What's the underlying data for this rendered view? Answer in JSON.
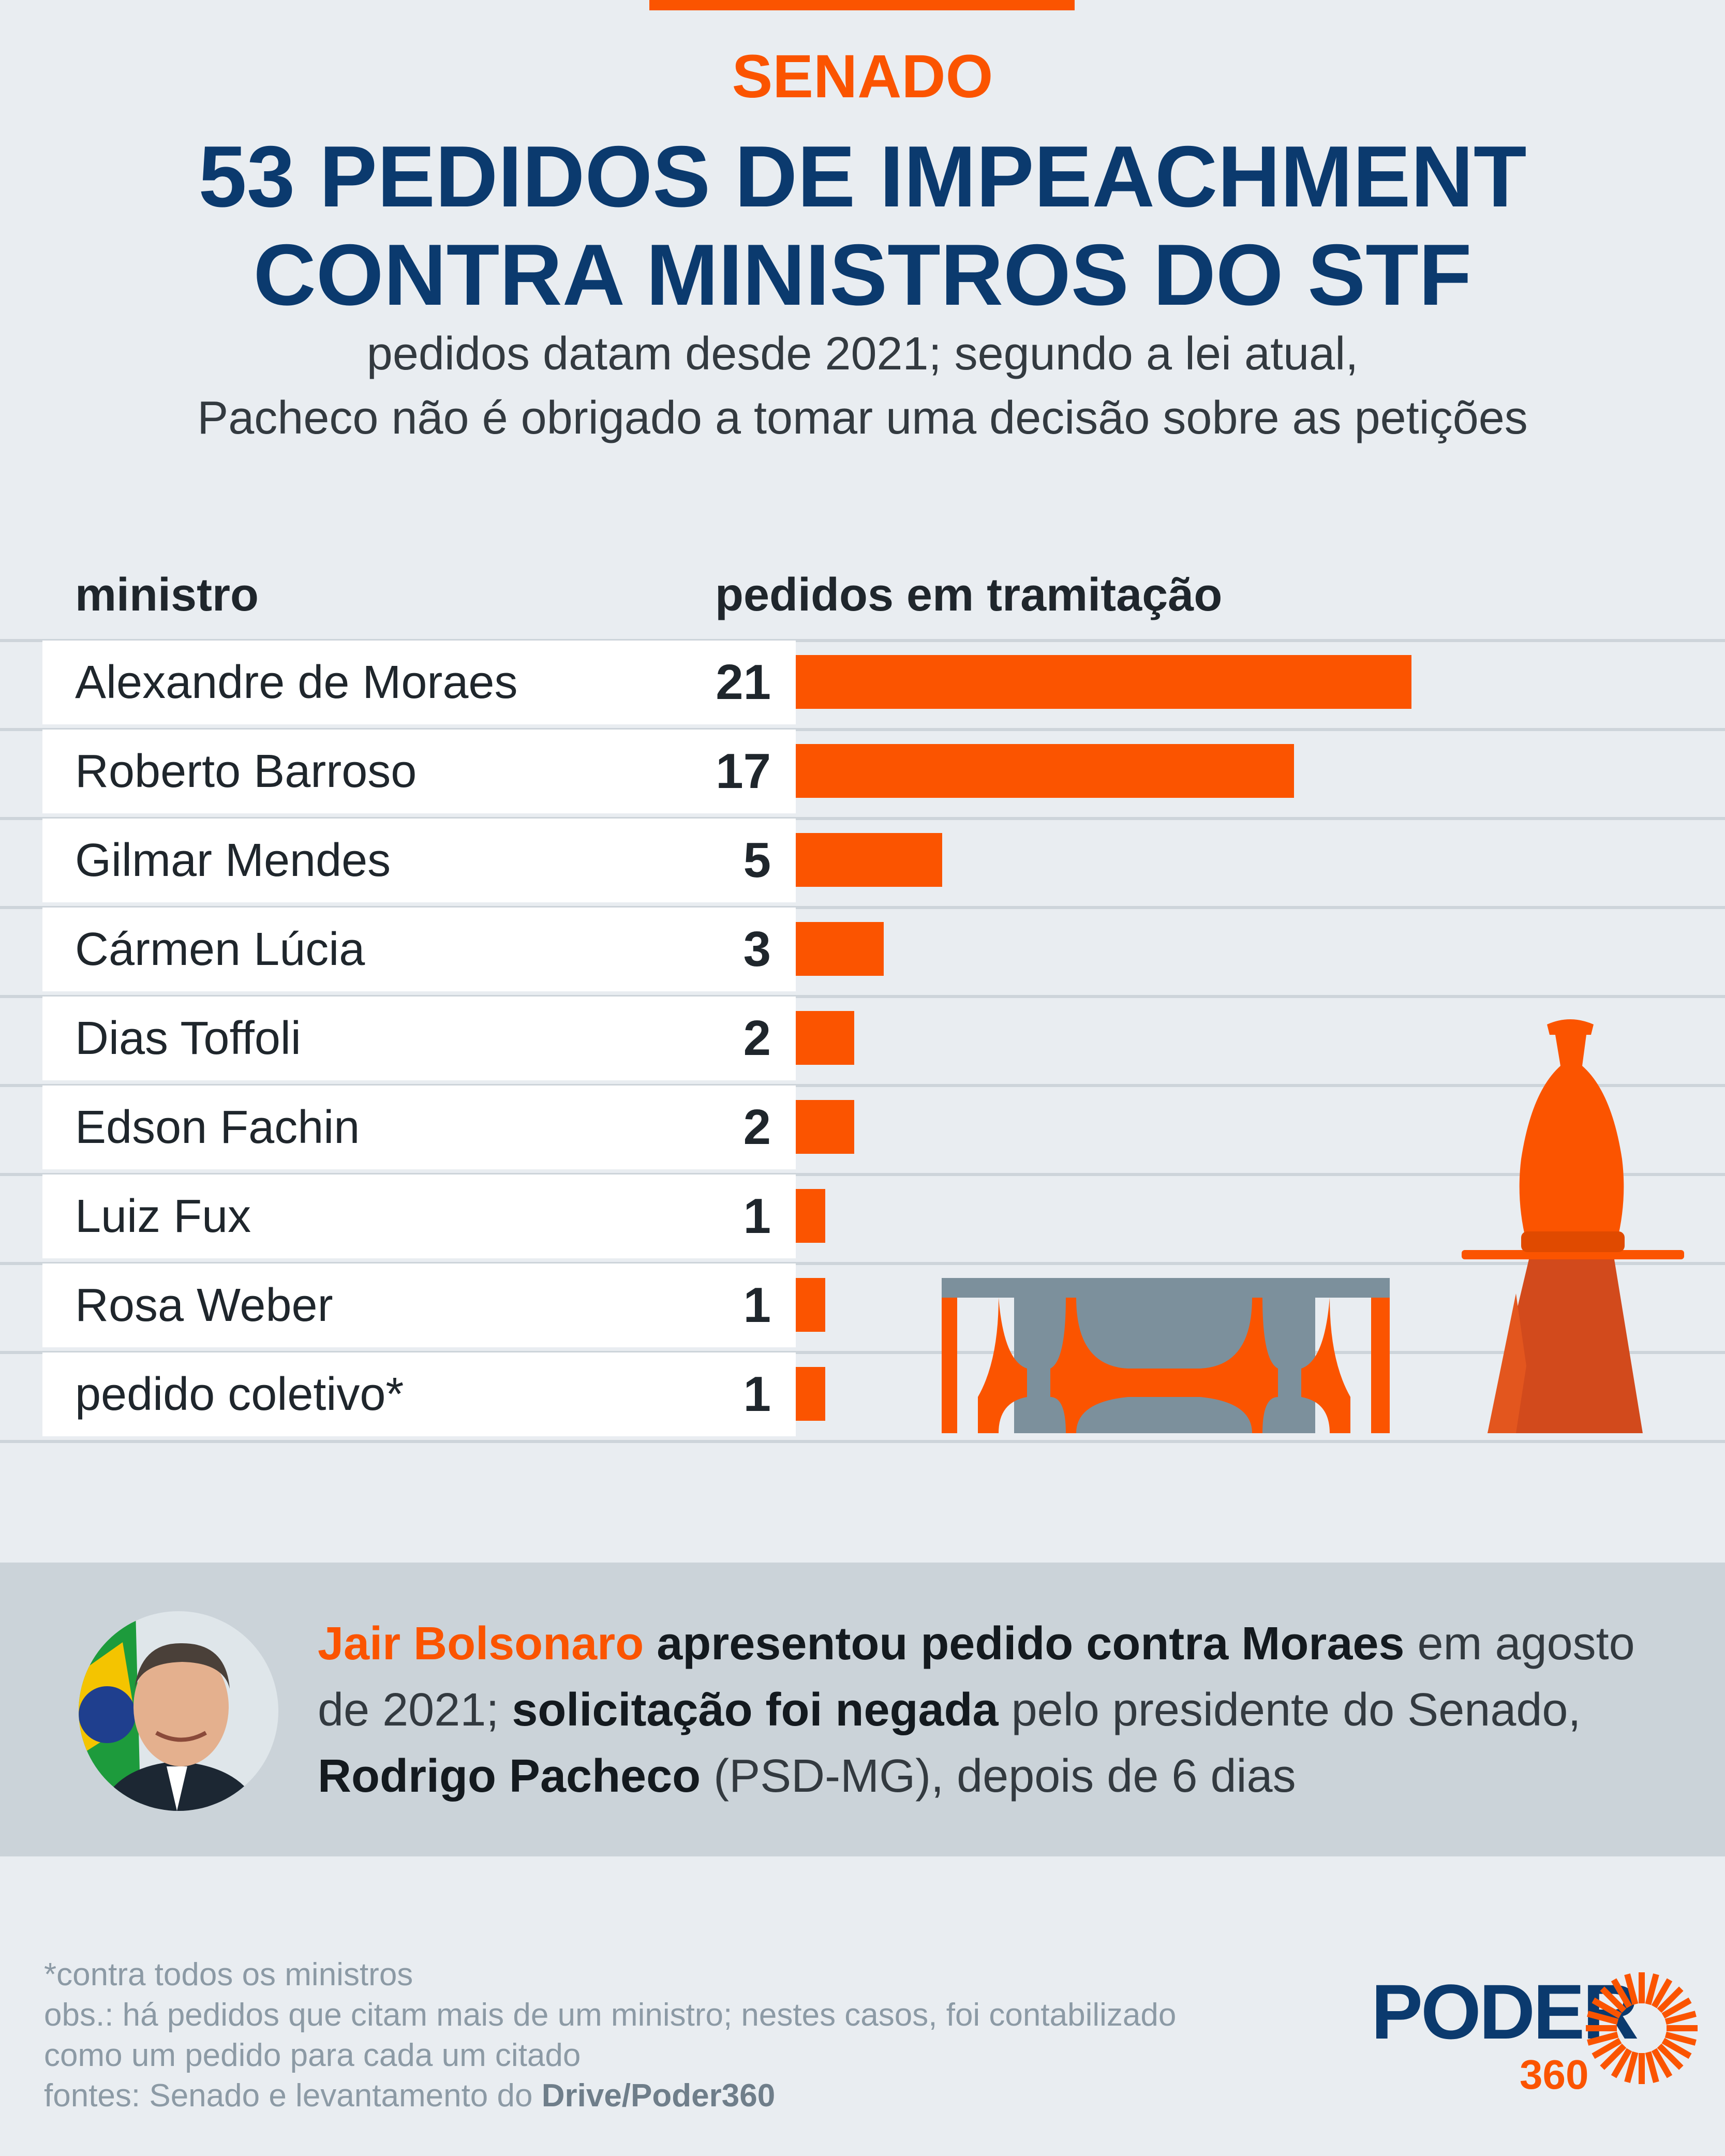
{
  "header": {
    "kicker": "SENADO",
    "title_line1": "53 PEDIDOS DE IMPEACHMENT",
    "title_line2": "CONTRA MINISTROS DO STF",
    "subtitle_line1": "pedidos datam desde 2021; segundo a lei atual,",
    "subtitle_line2": "Pacheco não é obrigado a tomar uma decisão sobre as petições"
  },
  "table": {
    "col_minister": "ministro",
    "col_requests": "pedidos em tramitação"
  },
  "chart_data": {
    "type": "bar",
    "orientation": "horizontal",
    "categories": [
      "Alexandre de Moraes",
      "Roberto Barroso",
      "Gilmar Mendes",
      "Cármen Lúcia",
      "Dias Toffoli",
      "Edson Fachin",
      "Luiz Fux",
      "Rosa Weber",
      "pedido coletivo*"
    ],
    "values": [
      21,
      17,
      5,
      3,
      2,
      2,
      1,
      1,
      1
    ],
    "value_labels": [
      "21",
      "17",
      "5",
      "3",
      "2",
      "2",
      "1",
      "1",
      "1"
    ],
    "xlim": [
      0,
      21
    ],
    "bar_color": "#fb5400",
    "grid": false
  },
  "note": {
    "part1": "Jair Bolsonaro",
    "part2": " ",
    "part3": "apresentou pedido contra Moraes",
    "part4": " em agosto de 2021; ",
    "part5": "solicitação foi negada",
    "part6": " pelo presidente do Senado, ",
    "part7": "Rodrigo Pacheco",
    "part8": " (PSD-MG), depois de 6 dias"
  },
  "footer": {
    "line1": "*contra todos os ministros",
    "line2": "obs.: há pedidos que citam mais de um ministro; nestes casos, foi contabilizado",
    "line3": "como um pedido para cada um citado",
    "line4_prefix": "fontes: Senado e levantamento do ",
    "line4_bold": "Drive/Poder360"
  },
  "logo": {
    "word": "PODER",
    "number": "360"
  },
  "colors": {
    "accent": "#fb5400",
    "navy": "#0b3a6e",
    "background": "#e9edf1",
    "panel": "#cbd3d9"
  }
}
